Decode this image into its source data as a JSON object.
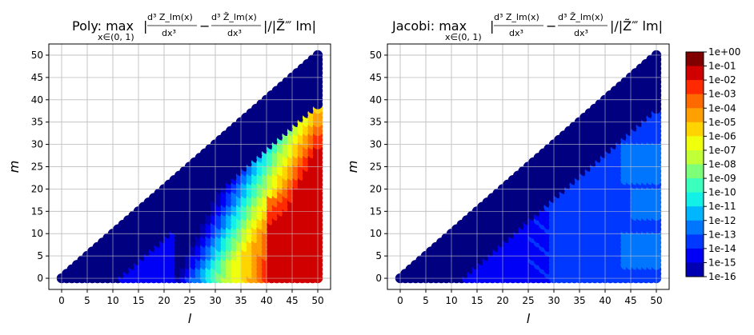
{
  "chart_data": [
    {
      "type": "scatter",
      "title": {
        "prefix": "Poly: max",
        "subscript": "x∈(0, 1)",
        "frac1_num": "d³ Z_lm(x)",
        "frac1_den": "dx³",
        "minus": "−",
        "frac2_num": "d³ Z̃_lm(x)",
        "frac2_den": "dx³",
        "suffix": "|/|Z̃‴ lm|"
      },
      "xlabel": "l",
      "ylabel": "m",
      "xlim": [
        -2.5,
        52.5
      ],
      "ylim": [
        -2.5,
        52.5
      ],
      "xticks": [
        0,
        5,
        10,
        15,
        20,
        25,
        30,
        35,
        40,
        45,
        50
      ],
      "yticks": [
        0,
        5,
        10,
        15,
        20,
        25,
        30,
        35,
        40,
        45,
        50
      ],
      "grid": true,
      "l_range": [
        0,
        50
      ],
      "m_rule": "0 <= m <= l",
      "error_model": {
        "description": "log10 error estimated from color per (l, m)",
        "zero_diagonal_band": "m >= l - 11 -> 1e-16",
        "regions": "low-l blue (~1e-14), mid cyan/green, high-l near m small yellow/orange/dark red (~1e-01)"
      }
    },
    {
      "type": "scatter",
      "title": {
        "prefix": "Jacobi: max",
        "subscript": "x∈(0, 1)",
        "frac1_num": "d³ Z_lm(x)",
        "frac1_den": "dx³",
        "minus": "−",
        "frac2_num": "d³ Z̃_lm(x)",
        "frac2_den": "dx³",
        "suffix": "|/|Z̃‴ lm|"
      },
      "xlabel": "l",
      "ylabel": "m",
      "xlim": [
        -2.5,
        52.5
      ],
      "ylim": [
        -2.5,
        52.5
      ],
      "xticks": [
        0,
        5,
        10,
        15,
        20,
        25,
        30,
        35,
        40,
        45,
        50
      ],
      "yticks": [
        0,
        5,
        10,
        15,
        20,
        25,
        30,
        35,
        40,
        45,
        50
      ],
      "grid": true,
      "l_range": [
        0,
        50
      ],
      "m_rule": "0 <= m <= l",
      "error_model": {
        "description": "log10 error estimated from color per (l, m)",
        "zero_diagonal_band": "m >= l - 12 -> 1e-16",
        "regions": "mostly 1e-14 to 1e-13, some 1e-12 patches at high l"
      }
    }
  ],
  "colorbar": {
    "labels": [
      "1e+00",
      "1e-01",
      "1e-02",
      "1e-03",
      "1e-04",
      "1e-05",
      "1e-06",
      "1e-07",
      "1e-08",
      "1e-09",
      "1e-10",
      "1e-11",
      "1e-12",
      "1e-13",
      "1e-14",
      "1e-15",
      "1e-16"
    ],
    "colors": [
      "#800000",
      "#d00000",
      "#ff2a00",
      "#ff6a00",
      "#ff9f00",
      "#ffd400",
      "#f0ff0c",
      "#c1ff36",
      "#7dff7a",
      "#3bffbd",
      "#13f0e8",
      "#00b6ff",
      "#0076ff",
      "#0038ff",
      "#0000f6",
      "#0000b2",
      "#000080"
    ]
  }
}
